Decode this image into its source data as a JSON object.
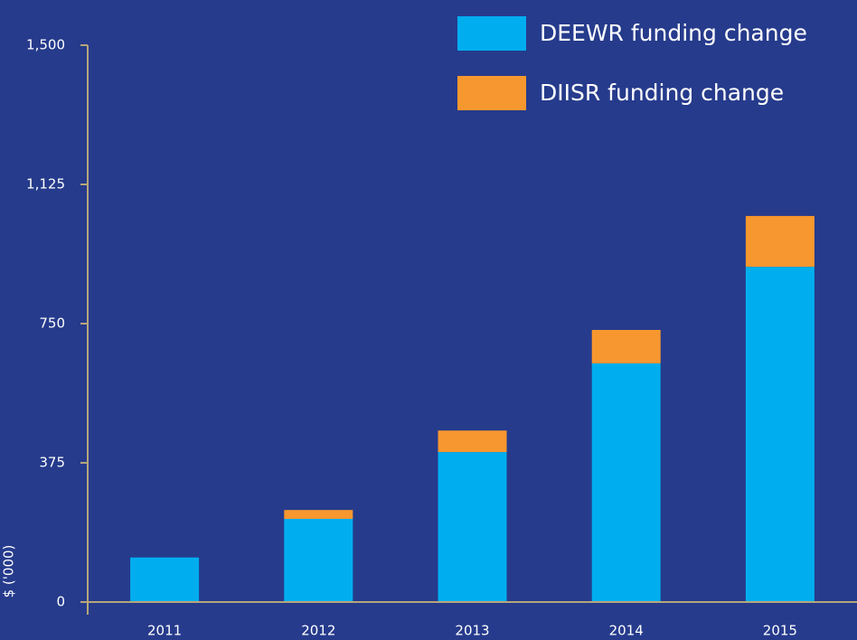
{
  "chart_data": {
    "type": "stacked_bar",
    "categories": [
      "2011",
      "2012",
      "2013",
      "2014",
      "2015"
    ],
    "series": [
      {
        "name": "DEEWR funding change",
        "color": "#00aeef",
        "values": [
          120,
          224,
          404,
          643,
          903
        ]
      },
      {
        "name": "DIISR funding change",
        "color": "#f7972f",
        "values": [
          0,
          24,
          58,
          90,
          137
        ]
      }
    ],
    "y_label": "$ ('000)",
    "ylim": [
      0,
      1500
    ],
    "yticks": [
      0,
      375,
      750,
      {
        "value": 1125,
        "label": "1,125"
      },
      {
        "value": 1500,
        "label": "1,500"
      }
    ],
    "legend": "top-right"
  }
}
